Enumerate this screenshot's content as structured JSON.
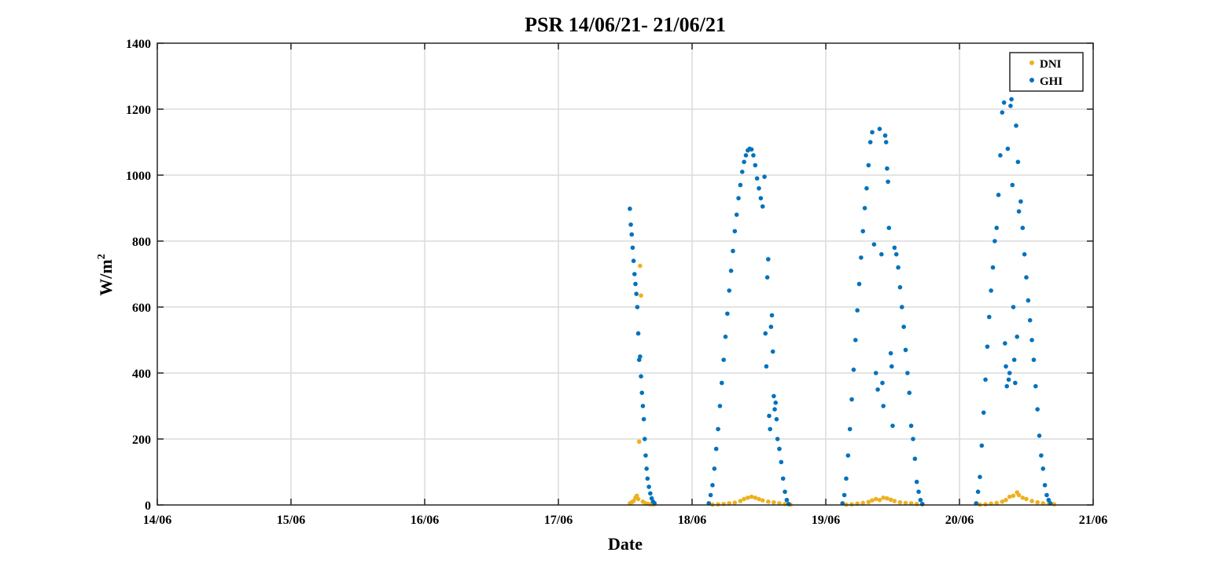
{
  "chart_data": {
    "type": "scatter",
    "title": "PSR 14/06/21- 21/06/21",
    "xlabel": "Date",
    "ylabel_main": "W/m",
    "ylabel_sup": "2",
    "ylim": [
      0,
      1400
    ],
    "yticks": [
      0,
      200,
      400,
      600,
      800,
      1000,
      1200,
      1400
    ],
    "xlim": [
      "2021-06-14",
      "2021-06-21"
    ],
    "xticks": [
      "14/06",
      "15/06",
      "16/06",
      "17/06",
      "18/06",
      "19/06",
      "20/06",
      "21/06"
    ],
    "grid": true,
    "legend_position": "top-right",
    "series": [
      {
        "name": "DNI",
        "color": "#EDB120",
        "points": [
          [
            "2021-06-17 12:50",
            5
          ],
          [
            "2021-06-17 13:10",
            8
          ],
          [
            "2021-06-17 13:30",
            12
          ],
          [
            "2021-06-17 13:50",
            22
          ],
          [
            "2021-06-17 14:05",
            28
          ],
          [
            "2021-06-17 14:20",
            18
          ],
          [
            "2021-06-17 14:30",
            192
          ],
          [
            "2021-06-17 14:40",
            725
          ],
          [
            "2021-06-17 14:50",
            635
          ],
          [
            "2021-06-17 15:10",
            10
          ],
          [
            "2021-06-17 15:40",
            5
          ],
          [
            "2021-06-17 16:10",
            3
          ],
          [
            "2021-06-17 16:40",
            2
          ],
          [
            "2021-06-17 17:10",
            2
          ],
          [
            "2021-06-18 03:40",
            1
          ],
          [
            "2021-06-18 04:40",
            2
          ],
          [
            "2021-06-18 05:40",
            3
          ],
          [
            "2021-06-18 06:40",
            5
          ],
          [
            "2021-06-18 07:40",
            7
          ],
          [
            "2021-06-18 08:40",
            12
          ],
          [
            "2021-06-18 09:20",
            18
          ],
          [
            "2021-06-18 10:00",
            22
          ],
          [
            "2021-06-18 10:40",
            25
          ],
          [
            "2021-06-18 11:20",
            22
          ],
          [
            "2021-06-18 12:00",
            18
          ],
          [
            "2021-06-18 12:40",
            14
          ],
          [
            "2021-06-18 13:40",
            10
          ],
          [
            "2021-06-18 14:40",
            8
          ],
          [
            "2021-06-18 15:40",
            5
          ],
          [
            "2021-06-18 16:40",
            3
          ],
          [
            "2021-06-18 17:40",
            1
          ],
          [
            "2021-06-19 03:40",
            1
          ],
          [
            "2021-06-19 04:40",
            2
          ],
          [
            "2021-06-19 05:40",
            4
          ],
          [
            "2021-06-19 06:40",
            6
          ],
          [
            "2021-06-19 07:40",
            9
          ],
          [
            "2021-06-19 08:20",
            14
          ],
          [
            "2021-06-19 09:00",
            18
          ],
          [
            "2021-06-19 09:40",
            15
          ],
          [
            "2021-06-19 10:20",
            22
          ],
          [
            "2021-06-19 11:00",
            20
          ],
          [
            "2021-06-19 11:40",
            16
          ],
          [
            "2021-06-19 12:20",
            12
          ],
          [
            "2021-06-19 13:20",
            8
          ],
          [
            "2021-06-19 14:20",
            6
          ],
          [
            "2021-06-19 15:20",
            5
          ],
          [
            "2021-06-19 16:20",
            3
          ],
          [
            "2021-06-19 17:20",
            2
          ],
          [
            "2021-06-20 03:40",
            1
          ],
          [
            "2021-06-20 04:40",
            2
          ],
          [
            "2021-06-20 05:40",
            4
          ],
          [
            "2021-06-20 06:40",
            6
          ],
          [
            "2021-06-20 07:40",
            10
          ],
          [
            "2021-06-20 08:20",
            15
          ],
          [
            "2021-06-20 09:00",
            25
          ],
          [
            "2021-06-20 09:40",
            28
          ],
          [
            "2021-06-20 10:20",
            38
          ],
          [
            "2021-06-20 10:40",
            30
          ],
          [
            "2021-06-20 11:20",
            22
          ],
          [
            "2021-06-20 12:00",
            18
          ],
          [
            "2021-06-20 13:00",
            12
          ],
          [
            "2021-06-20 14:00",
            8
          ],
          [
            "2021-06-20 15:00",
            5
          ],
          [
            "2021-06-20 16:00",
            4
          ],
          [
            "2021-06-20 17:00",
            2
          ]
        ]
      },
      {
        "name": "GHI",
        "color": "#0072BD",
        "points": [
          [
            "2021-06-17 12:50",
            898
          ],
          [
            "2021-06-17 13:00",
            850
          ],
          [
            "2021-06-17 13:10",
            820
          ],
          [
            "2021-06-17 13:20",
            780
          ],
          [
            "2021-06-17 13:30",
            740
          ],
          [
            "2021-06-17 13:40",
            700
          ],
          [
            "2021-06-17 13:50",
            670
          ],
          [
            "2021-06-17 14:00",
            640
          ],
          [
            "2021-06-17 14:10",
            600
          ],
          [
            "2021-06-17 14:20",
            520
          ],
          [
            "2021-06-17 14:30",
            440
          ],
          [
            "2021-06-17 14:40",
            450
          ],
          [
            "2021-06-17 14:50",
            390
          ],
          [
            "2021-06-17 15:00",
            340
          ],
          [
            "2021-06-17 15:10",
            300
          ],
          [
            "2021-06-17 15:20",
            260
          ],
          [
            "2021-06-17 15:30",
            200
          ],
          [
            "2021-06-17 15:40",
            150
          ],
          [
            "2021-06-17 15:50",
            110
          ],
          [
            "2021-06-17 16:00",
            80
          ],
          [
            "2021-06-17 16:15",
            55
          ],
          [
            "2021-06-17 16:30",
            35
          ],
          [
            "2021-06-17 16:45",
            20
          ],
          [
            "2021-06-17 17:00",
            10
          ],
          [
            "2021-06-17 17:15",
            5
          ],
          [
            "2021-06-18 03:00",
            5
          ],
          [
            "2021-06-18 03:20",
            30
          ],
          [
            "2021-06-18 03:40",
            60
          ],
          [
            "2021-06-18 04:00",
            110
          ],
          [
            "2021-06-18 04:20",
            170
          ],
          [
            "2021-06-18 04:40",
            230
          ],
          [
            "2021-06-18 05:00",
            300
          ],
          [
            "2021-06-18 05:20",
            370
          ],
          [
            "2021-06-18 05:40",
            440
          ],
          [
            "2021-06-18 06:00",
            510
          ],
          [
            "2021-06-18 06:20",
            580
          ],
          [
            "2021-06-18 06:40",
            650
          ],
          [
            "2021-06-18 07:00",
            710
          ],
          [
            "2021-06-18 07:20",
            770
          ],
          [
            "2021-06-18 07:40",
            830
          ],
          [
            "2021-06-18 08:00",
            880
          ],
          [
            "2021-06-18 08:20",
            930
          ],
          [
            "2021-06-18 08:40",
            970
          ],
          [
            "2021-06-18 09:00",
            1010
          ],
          [
            "2021-06-18 09:20",
            1040
          ],
          [
            "2021-06-18 09:40",
            1060
          ],
          [
            "2021-06-18 10:00",
            1075
          ],
          [
            "2021-06-18 10:20",
            1080
          ],
          [
            "2021-06-18 10:40",
            1078
          ],
          [
            "2021-06-18 11:00",
            1060
          ],
          [
            "2021-06-18 11:20",
            1030
          ],
          [
            "2021-06-18 11:40",
            990
          ],
          [
            "2021-06-18 12:00",
            960
          ],
          [
            "2021-06-18 12:20",
            930
          ],
          [
            "2021-06-18 12:40",
            905
          ],
          [
            "2021-06-18 13:00",
            995
          ],
          [
            "2021-06-18 13:10",
            520
          ],
          [
            "2021-06-18 13:20",
            420
          ],
          [
            "2021-06-18 13:30",
            690
          ],
          [
            "2021-06-18 13:40",
            745
          ],
          [
            "2021-06-18 13:50",
            270
          ],
          [
            "2021-06-18 14:00",
            230
          ],
          [
            "2021-06-18 14:10",
            540
          ],
          [
            "2021-06-18 14:20",
            575
          ],
          [
            "2021-06-18 14:30",
            465
          ],
          [
            "2021-06-18 14:40",
            330
          ],
          [
            "2021-06-18 14:50",
            290
          ],
          [
            "2021-06-18 15:00",
            310
          ],
          [
            "2021-06-18 15:10",
            260
          ],
          [
            "2021-06-18 15:20",
            200
          ],
          [
            "2021-06-18 15:40",
            170
          ],
          [
            "2021-06-18 16:00",
            130
          ],
          [
            "2021-06-18 16:20",
            80
          ],
          [
            "2021-06-18 16:40",
            40
          ],
          [
            "2021-06-18 17:00",
            15
          ],
          [
            "2021-06-18 17:20",
            3
          ],
          [
            "2021-06-19 03:00",
            5
          ],
          [
            "2021-06-19 03:20",
            30
          ],
          [
            "2021-06-19 03:40",
            80
          ],
          [
            "2021-06-19 04:00",
            150
          ],
          [
            "2021-06-19 04:20",
            230
          ],
          [
            "2021-06-19 04:40",
            320
          ],
          [
            "2021-06-19 05:00",
            410
          ],
          [
            "2021-06-19 05:20",
            500
          ],
          [
            "2021-06-19 05:40",
            590
          ],
          [
            "2021-06-19 06:00",
            670
          ],
          [
            "2021-06-19 06:20",
            750
          ],
          [
            "2021-06-19 06:40",
            830
          ],
          [
            "2021-06-19 07:00",
            900
          ],
          [
            "2021-06-19 07:20",
            960
          ],
          [
            "2021-06-19 07:40",
            1030
          ],
          [
            "2021-06-19 08:00",
            1100
          ],
          [
            "2021-06-19 08:20",
            1130
          ],
          [
            "2021-06-19 08:40",
            790
          ],
          [
            "2021-06-19 09:00",
            400
          ],
          [
            "2021-06-19 09:20",
            350
          ],
          [
            "2021-06-19 09:40",
            1140
          ],
          [
            "2021-06-19 10:00",
            760
          ],
          [
            "2021-06-19 10:10",
            370
          ],
          [
            "2021-06-19 10:20",
            300
          ],
          [
            "2021-06-19 10:40",
            1120
          ],
          [
            "2021-06-19 10:50",
            1100
          ],
          [
            "2021-06-19 11:00",
            1020
          ],
          [
            "2021-06-19 11:10",
            980
          ],
          [
            "2021-06-19 11:20",
            840
          ],
          [
            "2021-06-19 11:40",
            460
          ],
          [
            "2021-06-19 11:50",
            420
          ],
          [
            "2021-06-19 12:00",
            240
          ],
          [
            "2021-06-19 12:20",
            780
          ],
          [
            "2021-06-19 12:40",
            760
          ],
          [
            "2021-06-19 13:00",
            720
          ],
          [
            "2021-06-19 13:20",
            660
          ],
          [
            "2021-06-19 13:40",
            600
          ],
          [
            "2021-06-19 14:00",
            540
          ],
          [
            "2021-06-19 14:20",
            470
          ],
          [
            "2021-06-19 14:40",
            400
          ],
          [
            "2021-06-19 15:00",
            340
          ],
          [
            "2021-06-19 15:20",
            240
          ],
          [
            "2021-06-19 15:40",
            200
          ],
          [
            "2021-06-19 16:00",
            140
          ],
          [
            "2021-06-19 16:20",
            70
          ],
          [
            "2021-06-19 16:40",
            40
          ],
          [
            "2021-06-19 17:00",
            15
          ],
          [
            "2021-06-19 17:20",
            3
          ],
          [
            "2021-06-20 03:00",
            5
          ],
          [
            "2021-06-20 03:20",
            40
          ],
          [
            "2021-06-20 03:40",
            85
          ],
          [
            "2021-06-20 04:00",
            180
          ],
          [
            "2021-06-20 04:20",
            280
          ],
          [
            "2021-06-20 04:40",
            380
          ],
          [
            "2021-06-20 05:00",
            480
          ],
          [
            "2021-06-20 05:20",
            570
          ],
          [
            "2021-06-20 05:40",
            650
          ],
          [
            "2021-06-20 06:00",
            720
          ],
          [
            "2021-06-20 06:20",
            800
          ],
          [
            "2021-06-20 06:40",
            840
          ],
          [
            "2021-06-20 07:00",
            940
          ],
          [
            "2021-06-20 07:20",
            1060
          ],
          [
            "2021-06-20 07:40",
            1190
          ],
          [
            "2021-06-20 08:00",
            1220
          ],
          [
            "2021-06-20 08:10",
            490
          ],
          [
            "2021-06-20 08:20",
            420
          ],
          [
            "2021-06-20 08:30",
            360
          ],
          [
            "2021-06-20 08:40",
            1080
          ],
          [
            "2021-06-20 08:50",
            380
          ],
          [
            "2021-06-20 09:00",
            400
          ],
          [
            "2021-06-20 09:10",
            1210
          ],
          [
            "2021-06-20 09:20",
            1230
          ],
          [
            "2021-06-20 09:30",
            970
          ],
          [
            "2021-06-20 09:40",
            600
          ],
          [
            "2021-06-20 09:50",
            440
          ],
          [
            "2021-06-20 10:00",
            370
          ],
          [
            "2021-06-20 10:10",
            1150
          ],
          [
            "2021-06-20 10:20",
            510
          ],
          [
            "2021-06-20 10:30",
            1040
          ],
          [
            "2021-06-20 10:40",
            890
          ],
          [
            "2021-06-20 11:00",
            920
          ],
          [
            "2021-06-20 11:20",
            840
          ],
          [
            "2021-06-20 11:40",
            760
          ],
          [
            "2021-06-20 12:00",
            690
          ],
          [
            "2021-06-20 12:20",
            620
          ],
          [
            "2021-06-20 12:40",
            560
          ],
          [
            "2021-06-20 13:00",
            500
          ],
          [
            "2021-06-20 13:20",
            440
          ],
          [
            "2021-06-20 13:40",
            360
          ],
          [
            "2021-06-20 14:00",
            290
          ],
          [
            "2021-06-20 14:20",
            210
          ],
          [
            "2021-06-20 14:40",
            150
          ],
          [
            "2021-06-20 15:00",
            110
          ],
          [
            "2021-06-20 15:20",
            60
          ],
          [
            "2021-06-20 15:40",
            30
          ],
          [
            "2021-06-20 16:00",
            15
          ],
          [
            "2021-06-20 16:20",
            5
          ]
        ]
      }
    ]
  }
}
